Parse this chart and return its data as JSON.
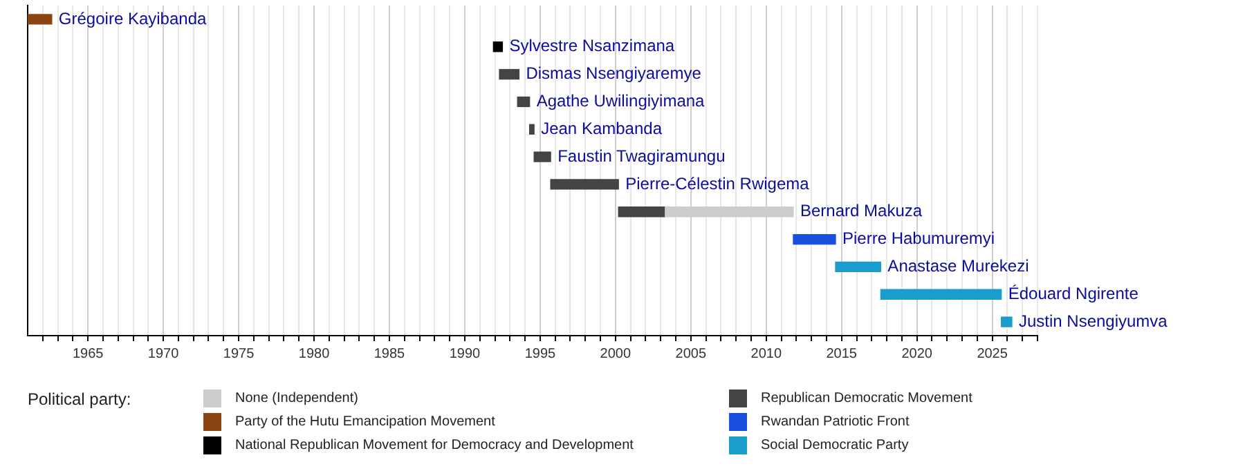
{
  "chart_data": {
    "type": "bar",
    "orientation": "horizontal",
    "legend_title": "Political party:",
    "legend": "bottom",
    "grid": "x",
    "tick_labels": "x",
    "categories": [
      null,
      null,
      null,
      null,
      null,
      null,
      null,
      null,
      null,
      null,
      null,
      null
    ],
    "series": [
      {
        "name": "None (Independent)",
        "color": "#cccccc",
        "base": [
          null,
          null,
          null,
          null,
          null,
          null,
          null,
          2003.3,
          null,
          null,
          null,
          null
        ],
        "values": [
          null,
          null,
          null,
          null,
          null,
          null,
          null,
          8.5,
          null,
          null,
          null,
          null
        ],
        "value_labels": [
          null,
          null,
          null,
          null,
          null,
          null,
          null,
          "Bernard Makuza",
          null,
          null,
          null,
          null
        ]
      },
      {
        "name": "Party of the Hutu Emancipation Movement",
        "color": "#8b4513",
        "base": [
          1961,
          null,
          null,
          null,
          null,
          null,
          null,
          null,
          null,
          null,
          null,
          null
        ],
        "values": [
          1.6,
          null,
          null,
          null,
          null,
          null,
          null,
          null,
          null,
          null,
          null,
          null
        ],
        "value_labels": [
          "Grégoire Kayibanda",
          null,
          null,
          null,
          null,
          null,
          null,
          null,
          null,
          null,
          null,
          null
        ]
      },
      {
        "name": "National Republican Movement for Democracy and Development",
        "color": "#000000",
        "base": [
          null,
          1991.9,
          null,
          null,
          null,
          null,
          null,
          null,
          null,
          null,
          null,
          null
        ],
        "values": [
          null,
          0.6,
          null,
          null,
          null,
          null,
          null,
          null,
          null,
          null,
          null,
          null
        ],
        "value_labels": [
          null,
          "Sylvestre Nsanzimana",
          null,
          null,
          null,
          null,
          null,
          null,
          null,
          null,
          null,
          null
        ]
      },
      {
        "name": "Republican Democratic Movement",
        "color": "#444444",
        "base": [
          null,
          null,
          1992.3,
          1993.5,
          1994.3,
          1994.6,
          1995.7,
          2000.2,
          null,
          null,
          null,
          null
        ],
        "values": [
          null,
          null,
          1.3,
          0.8,
          0.3,
          1.1,
          4.5,
          3.1,
          null,
          null,
          null,
          null
        ],
        "value_labels": [
          null,
          null,
          "Dismas Nsengiyaremye",
          "Agathe Uwilingiyimana",
          "Jean Kambanda",
          "Faustin Twagiramungu",
          "Pierre-Célestin Rwigema",
          null,
          null,
          null,
          null,
          null
        ]
      },
      {
        "name": "Rwandan Patriotic Front",
        "color": "#1a4fe0",
        "base": [
          null,
          null,
          null,
          null,
          null,
          null,
          null,
          null,
          2011.8,
          null,
          null,
          null
        ],
        "values": [
          null,
          null,
          null,
          null,
          null,
          null,
          null,
          null,
          2.8,
          null,
          null,
          null
        ],
        "value_labels": [
          null,
          null,
          null,
          null,
          null,
          null,
          null,
          null,
          "Pierre Habumuremyi",
          null,
          null,
          null
        ]
      },
      {
        "name": "Social Democratic Party",
        "color": "#1a9ccc",
        "base": [
          null,
          null,
          null,
          null,
          null,
          null,
          null,
          null,
          null,
          2014.6,
          2017.6,
          2025.6
        ],
        "values": [
          null,
          null,
          null,
          null,
          null,
          null,
          null,
          null,
          null,
          3.0,
          8.0,
          0.7
        ],
        "value_labels": [
          null,
          null,
          null,
          null,
          null,
          null,
          null,
          null,
          null,
          "Anastase Murekezi",
          "Édouard Ngirente",
          "Justin Nsengiyumva"
        ]
      }
    ],
    "xlim": [
      1961,
      2028
    ],
    "xticks": [
      {
        "value": 1962,
        "label": null
      },
      {
        "value": 1963,
        "label": null
      },
      {
        "value": 1964,
        "label": null
      },
      1965,
      {
        "value": 1966,
        "label": null
      },
      {
        "value": 1967,
        "label": null
      },
      {
        "value": 1968,
        "label": null
      },
      {
        "value": 1969,
        "label": null
      },
      1970,
      {
        "value": 1971,
        "label": null
      },
      {
        "value": 1972,
        "label": null
      },
      {
        "value": 1973,
        "label": null
      },
      {
        "value": 1974,
        "label": null
      },
      1975,
      {
        "value": 1976,
        "label": null
      },
      {
        "value": 1977,
        "label": null
      },
      {
        "value": 1978,
        "label": null
      },
      {
        "value": 1979,
        "label": null
      },
      1980,
      {
        "value": 1981,
        "label": null
      },
      {
        "value": 1982,
        "label": null
      },
      {
        "value": 1983,
        "label": null
      },
      {
        "value": 1984,
        "label": null
      },
      1985,
      {
        "value": 1986,
        "label": null
      },
      {
        "value": 1987,
        "label": null
      },
      {
        "value": 1988,
        "label": null
      },
      {
        "value": 1989,
        "label": null
      },
      1990,
      {
        "value": 1991,
        "label": null
      },
      {
        "value": 1992,
        "label": null
      },
      {
        "value": 1993,
        "label": null
      },
      {
        "value": 1994,
        "label": null
      },
      1995,
      {
        "value": 1996,
        "label": null
      },
      {
        "value": 1997,
        "label": null
      },
      {
        "value": 1998,
        "label": null
      },
      {
        "value": 1999,
        "label": null
      },
      2000,
      {
        "value": 2001,
        "label": null
      },
      {
        "value": 2002,
        "label": null
      },
      {
        "value": 2003,
        "label": null
      },
      {
        "value": 2004,
        "label": null
      },
      2005,
      {
        "value": 2006,
        "label": null
      },
      {
        "value": 2007,
        "label": null
      },
      {
        "value": 2008,
        "label": null
      },
      {
        "value": 2009,
        "label": null
      },
      2010,
      {
        "value": 2011,
        "label": null
      },
      {
        "value": 2012,
        "label": null
      },
      {
        "value": 2013,
        "label": null
      },
      {
        "value": 2014,
        "label": null
      },
      2015,
      {
        "value": 2016,
        "label": null
      },
      {
        "value": 2017,
        "label": null
      },
      {
        "value": 2018,
        "label": null
      },
      {
        "value": 2019,
        "label": null
      },
      2020,
      {
        "value": 2021,
        "label": null
      },
      {
        "value": 2022,
        "label": null
      },
      {
        "value": 2023,
        "label": null
      },
      {
        "value": 2024,
        "label": null
      },
      2025,
      {
        "value": 2026,
        "label": null
      },
      {
        "value": 2027,
        "label": null
      },
      {
        "value": 2028,
        "label": null
      }
    ]
  }
}
